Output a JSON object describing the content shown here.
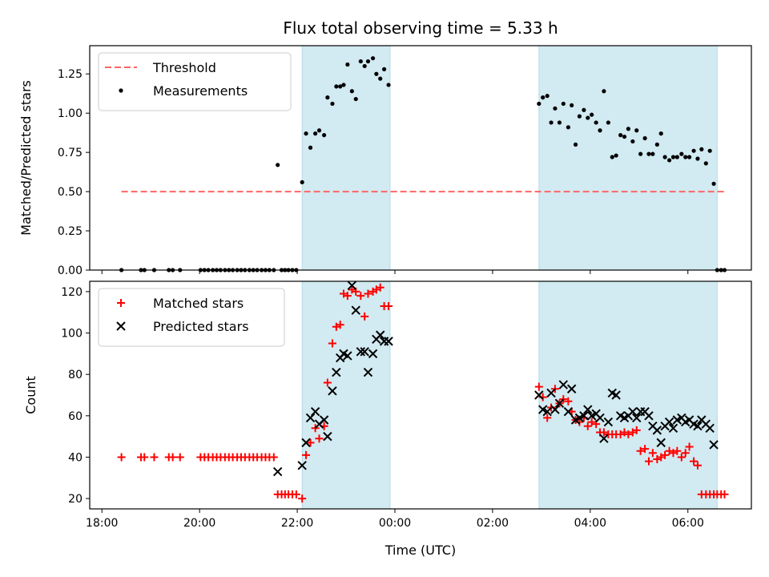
{
  "chart_data": [
    {
      "type": "scatter",
      "title": "Flux total observing time = 5.33 h",
      "xlabel": "",
      "ylabel": "Matched/Predicted stars",
      "xlim_hours": [
        17.75,
        31.3
      ],
      "ylim": [
        0,
        1.43
      ],
      "yticks": [
        0.0,
        0.25,
        0.5,
        0.75,
        1.0,
        1.25
      ],
      "ytick_labels": [
        "0.00",
        "0.25",
        "0.50",
        "0.75",
        "1.00",
        "1.25"
      ],
      "legend_position": "top-left",
      "shaded_intervals_hours": [
        [
          22.1,
          23.9
        ],
        [
          26.95,
          30.6
        ]
      ],
      "shade_color": "#add8e6",
      "threshold": {
        "name": "Threshold",
        "y": 0.5,
        "x_range_hours": [
          18.4,
          30.75
        ],
        "color": "#ff6666"
      },
      "series": [
        {
          "name": "Measurements",
          "marker": "dot",
          "color": "#000000",
          "x": [
            18.4,
            18.8,
            18.87,
            19.07,
            19.37,
            19.45,
            19.6,
            20.02,
            20.1,
            20.18,
            20.27,
            20.35,
            20.43,
            20.52,
            20.6,
            20.68,
            20.77,
            20.85,
            20.93,
            21.02,
            21.1,
            21.18,
            21.27,
            21.35,
            21.43,
            21.52,
            21.6,
            21.68,
            21.75,
            21.82,
            21.9,
            21.98,
            22.1,
            22.18,
            22.27,
            22.37,
            22.45,
            22.55,
            22.62,
            22.72,
            22.8,
            22.88,
            22.95,
            23.03,
            23.12,
            23.2,
            23.3,
            23.38,
            23.45,
            23.55,
            23.62,
            23.7,
            23.78,
            23.87,
            26.95,
            27.03,
            27.12,
            27.2,
            27.28,
            27.37,
            27.45,
            27.55,
            27.62,
            27.7,
            27.78,
            27.87,
            27.95,
            28.03,
            28.12,
            28.2,
            28.28,
            28.37,
            28.45,
            28.53,
            28.62,
            28.7,
            28.78,
            28.87,
            28.95,
            29.03,
            29.12,
            29.2,
            29.28,
            29.37,
            29.45,
            29.53,
            29.62,
            29.7,
            29.78,
            29.87,
            29.95,
            30.03,
            30.12,
            30.2,
            30.28,
            30.37,
            30.45,
            30.53,
            30.6,
            30.68,
            30.75
          ],
          "y": [
            0.0,
            0.0,
            0.0,
            0.0,
            0.0,
            0.0,
            0.0,
            0.0,
            0.0,
            0.0,
            0.0,
            0.0,
            0.0,
            0.0,
            0.0,
            0.0,
            0.0,
            0.0,
            0.0,
            0.0,
            0.0,
            0.0,
            0.0,
            0.0,
            0.0,
            0.0,
            0.67,
            0.0,
            0.0,
            0.0,
            0.0,
            0.0,
            0.56,
            0.87,
            0.78,
            0.87,
            0.89,
            0.86,
            1.1,
            1.06,
            1.17,
            1.17,
            1.18,
            1.31,
            1.14,
            1.09,
            1.33,
            1.3,
            1.33,
            1.35,
            1.25,
            1.22,
            1.28,
            1.18,
            1.06,
            1.1,
            1.11,
            0.94,
            1.03,
            0.94,
            1.06,
            0.91,
            1.05,
            0.8,
            0.98,
            1.02,
            0.97,
            0.99,
            0.94,
            0.89,
            1.14,
            0.94,
            0.72,
            0.73,
            0.86,
            0.85,
            0.9,
            0.82,
            0.89,
            0.74,
            0.84,
            0.74,
            0.74,
            0.8,
            0.87,
            0.72,
            0.7,
            0.72,
            0.72,
            0.74,
            0.72,
            0.72,
            0.76,
            0.71,
            0.77,
            0.68,
            0.76,
            0.55,
            0.0,
            0.0,
            0.0
          ]
        }
      ]
    },
    {
      "type": "scatter",
      "title": "",
      "xlabel": "Time (UTC)",
      "ylabel": "Count",
      "xlim_hours": [
        17.75,
        31.3
      ],
      "ylim": [
        15,
        125
      ],
      "xticks_hours": [
        18,
        20,
        22,
        24,
        26,
        28,
        30
      ],
      "xtick_labels": [
        "18:00",
        "20:00",
        "22:00",
        "00:00",
        "02:00",
        "04:00",
        "06:00"
      ],
      "yticks": [
        20,
        40,
        60,
        80,
        100,
        120
      ],
      "ytick_labels": [
        "20",
        "40",
        "60",
        "80",
        "100",
        "120"
      ],
      "legend_position": "top-left",
      "shaded_intervals_hours": [
        [
          22.1,
          23.9
        ],
        [
          26.95,
          30.6
        ]
      ],
      "shade_color": "#add8e6",
      "series": [
        {
          "name": "Matched stars",
          "marker": "plus",
          "color": "#ff0000",
          "x": [
            18.4,
            18.8,
            18.87,
            19.07,
            19.37,
            19.45,
            19.6,
            20.02,
            20.1,
            20.18,
            20.27,
            20.35,
            20.43,
            20.52,
            20.6,
            20.68,
            20.77,
            20.85,
            20.93,
            21.02,
            21.1,
            21.18,
            21.27,
            21.35,
            21.43,
            21.52,
            21.6,
            21.68,
            21.75,
            21.82,
            21.9,
            21.98,
            22.1,
            22.18,
            22.27,
            22.37,
            22.45,
            22.55,
            22.62,
            22.72,
            22.8,
            22.88,
            22.95,
            23.03,
            23.12,
            23.2,
            23.3,
            23.38,
            23.45,
            23.55,
            23.62,
            23.7,
            23.78,
            23.87,
            26.95,
            27.03,
            27.12,
            27.2,
            27.28,
            27.37,
            27.45,
            27.55,
            27.62,
            27.7,
            27.78,
            27.87,
            27.95,
            28.03,
            28.12,
            28.2,
            28.28,
            28.37,
            28.45,
            28.53,
            28.62,
            28.7,
            28.78,
            28.87,
            28.95,
            29.03,
            29.12,
            29.2,
            29.28,
            29.37,
            29.45,
            29.53,
            29.62,
            29.7,
            29.78,
            29.87,
            29.95,
            30.03,
            30.12,
            30.2,
            30.28,
            30.37,
            30.45,
            30.53,
            30.6,
            30.68,
            30.75
          ],
          "y": [
            40,
            40,
            40,
            40,
            40,
            40,
            40,
            40,
            40,
            40,
            40,
            40,
            40,
            40,
            40,
            40,
            40,
            40,
            40,
            40,
            40,
            40,
            40,
            40,
            40,
            40,
            22,
            22,
            22,
            22,
            22,
            22,
            20,
            41,
            47,
            54,
            49,
            55,
            76,
            95,
            103,
            104,
            119,
            118,
            121,
            120,
            118,
            108,
            119,
            120,
            121,
            122,
            113,
            113,
            74,
            69,
            59,
            64,
            73,
            66,
            68,
            67,
            62,
            58,
            57,
            59,
            55,
            57,
            56,
            52,
            52,
            51,
            51,
            51,
            51,
            52,
            51,
            52,
            53,
            43,
            44,
            38,
            42,
            39,
            40,
            41,
            43,
            42,
            43,
            40,
            42,
            45,
            38,
            36,
            22,
            22,
            22,
            22,
            22,
            22,
            22
          ]
        },
        {
          "name": "Predicted stars",
          "marker": "cross",
          "color": "#000000",
          "x": [
            21.6,
            22.1,
            22.18,
            22.27,
            22.37,
            22.45,
            22.55,
            22.62,
            22.72,
            22.8,
            22.88,
            22.95,
            23.03,
            23.12,
            23.2,
            23.3,
            23.38,
            23.45,
            23.55,
            23.62,
            23.7,
            23.78,
            23.87,
            26.95,
            27.03,
            27.12,
            27.2,
            27.28,
            27.37,
            27.45,
            27.55,
            27.62,
            27.7,
            27.78,
            27.87,
            27.95,
            28.03,
            28.12,
            28.2,
            28.28,
            28.37,
            28.45,
            28.53,
            28.62,
            28.7,
            28.78,
            28.87,
            28.95,
            29.03,
            29.12,
            29.2,
            29.28,
            29.37,
            29.45,
            29.53,
            29.62,
            29.7,
            29.78,
            29.87,
            29.95,
            30.03,
            30.12,
            30.2,
            30.28,
            30.37,
            30.45,
            30.53
          ],
          "y": [
            33,
            36,
            47,
            59,
            62,
            56,
            58,
            50,
            72,
            81,
            88,
            90,
            89,
            123,
            111,
            91,
            91,
            81,
            90,
            97,
            99,
            96,
            96,
            70,
            63,
            62,
            71,
            63,
            66,
            75,
            62,
            73,
            58,
            59,
            60,
            63,
            60,
            61,
            59,
            49,
            57,
            71,
            70,
            60,
            59,
            60,
            62,
            59,
            62,
            62,
            60,
            55,
            53,
            47,
            55,
            57,
            54,
            58,
            59,
            57,
            58,
            56,
            55,
            58,
            56,
            54,
            46
          ]
        }
      ]
    }
  ]
}
